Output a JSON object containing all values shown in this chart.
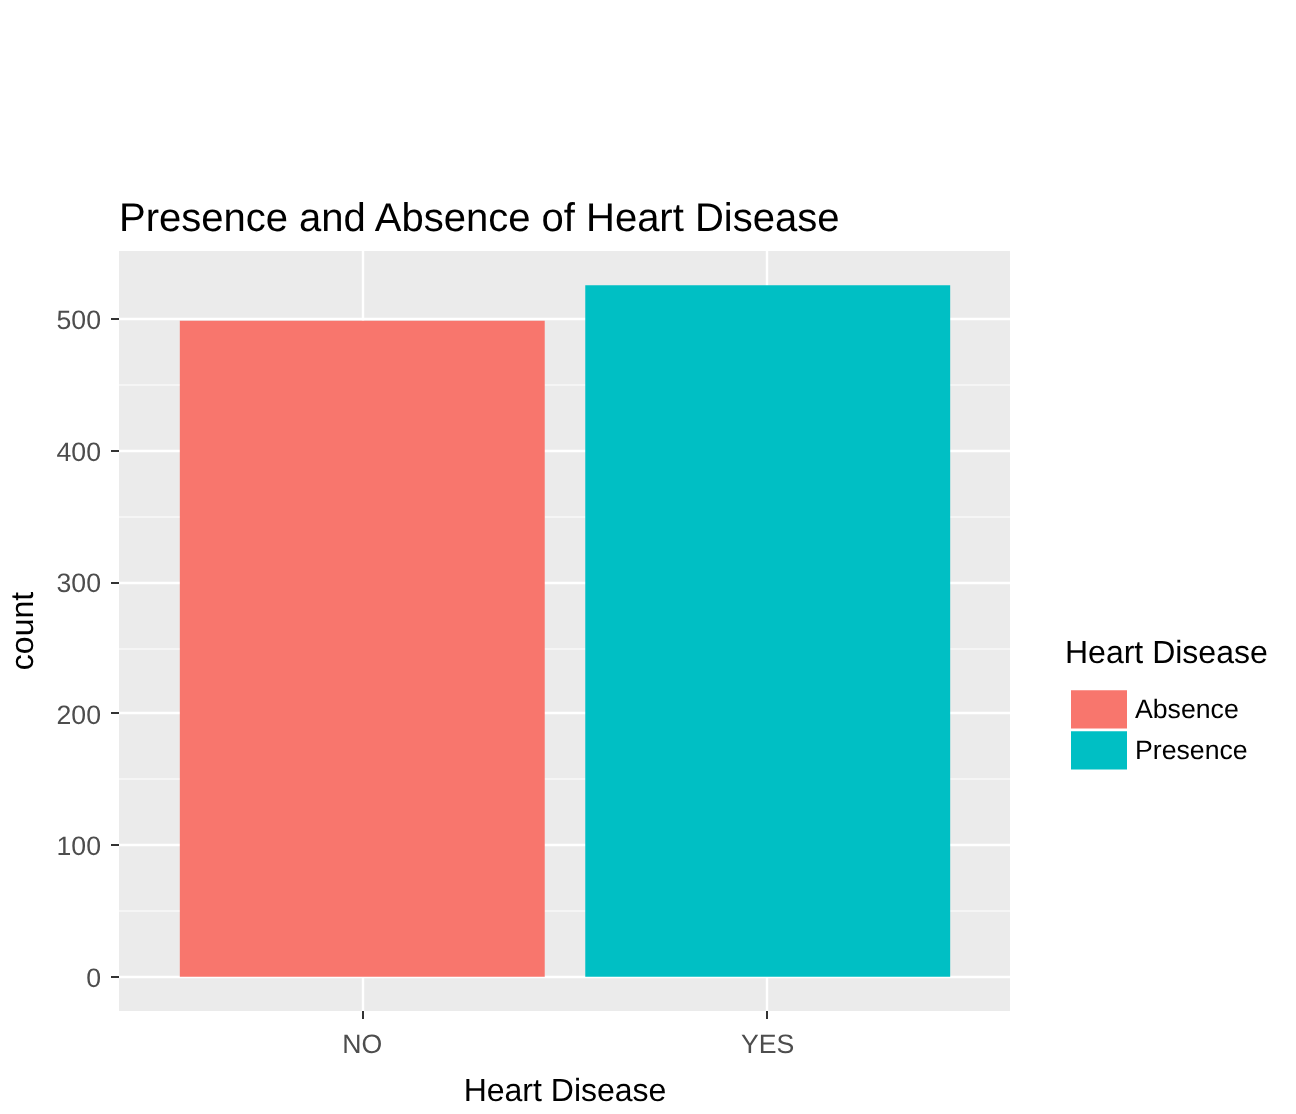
{
  "chart_data": {
    "type": "bar",
    "title": "Presence and Absence of Heart Disease",
    "xlabel": "Heart Disease",
    "ylabel": "count",
    "legend_title": "Heart Disease",
    "categories": [
      "NO",
      "YES"
    ],
    "series": [
      {
        "name": "Absence",
        "color": "#f8766d",
        "values": [
          499,
          null
        ]
      },
      {
        "name": "Presence",
        "color": "#00bfc4",
        "values": [
          null,
          526
        ]
      }
    ],
    "stacked": true,
    "ylim": [
      -26,
      552
    ],
    "yticks": [
      0,
      100,
      200,
      300,
      400,
      500
    ],
    "grid": true,
    "legend": "right"
  }
}
